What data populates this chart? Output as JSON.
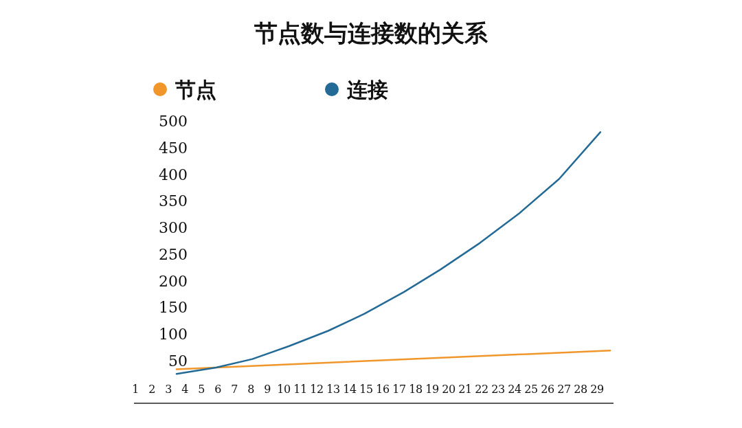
{
  "chart_data": {
    "type": "line",
    "title": "节点数与连接数的关系",
    "legend": "top left",
    "marker": "none",
    "grid": false,
    "line_style": "solid",
    "xlim": [
      1,
      30
    ],
    "xticks": [
      1,
      2,
      3,
      4,
      5,
      6,
      7,
      8,
      9,
      10,
      11,
      12,
      13,
      14,
      15,
      16,
      17,
      18,
      19,
      20,
      21,
      22,
      23,
      24,
      25,
      26,
      27,
      28,
      29
    ],
    "ylim": [
      -30,
      500
    ],
    "yticks": [
      50,
      100,
      150,
      200,
      250,
      300,
      350,
      400,
      450,
      500
    ],
    "series": [
      {
        "name": "节点",
        "color": "#f0962a",
        "x": [
          3.5,
          29.8
        ],
        "values": [
          34,
          69
        ]
      },
      {
        "name": "连接",
        "color": "#236a96",
        "x": [
          3.5,
          5.9,
          8.1,
          10.3,
          12.7,
          14.9,
          17.3,
          19.5,
          21.9,
          24.3,
          26.7,
          29.2
        ],
        "values": [
          25,
          37,
          53,
          77,
          106,
          138,
          179,
          221,
          271,
          327,
          391,
          479
        ]
      }
    ]
  }
}
